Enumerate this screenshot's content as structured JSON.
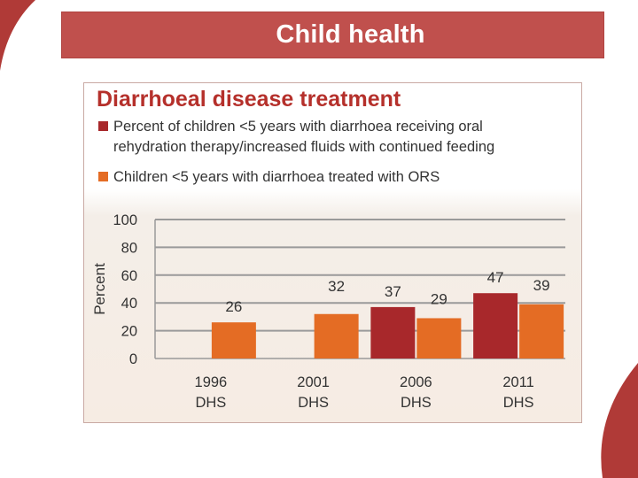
{
  "slide": {
    "title": "Child health",
    "accent_color": "#c0504d"
  },
  "chart_data": {
    "type": "bar",
    "title": "Diarrhoeal disease treatment",
    "ylabel": "Percent",
    "xlabel": "",
    "ylim": [
      0,
      100
    ],
    "yticks": [
      0,
      20,
      40,
      60,
      80,
      100
    ],
    "grid": true,
    "categories": [
      {
        "line1": "1996",
        "line2": "DHS"
      },
      {
        "line1": "2001",
        "line2": "DHS"
      },
      {
        "line1": "2006",
        "line2": "DHS"
      },
      {
        "line1": "2011",
        "line2": "DHS"
      }
    ],
    "series": [
      {
        "name": "Percent of children <5 years with diarrhoea receiving oral rehydration therapy/increased fluids with continued feeding",
        "color": "#a8282b",
        "values": [
          null,
          null,
          37,
          47
        ]
      },
      {
        "name": "Children <5 years with diarrhoea treated with ORS",
        "color": "#e46c24",
        "values": [
          26,
          32,
          29,
          39
        ]
      }
    ]
  }
}
